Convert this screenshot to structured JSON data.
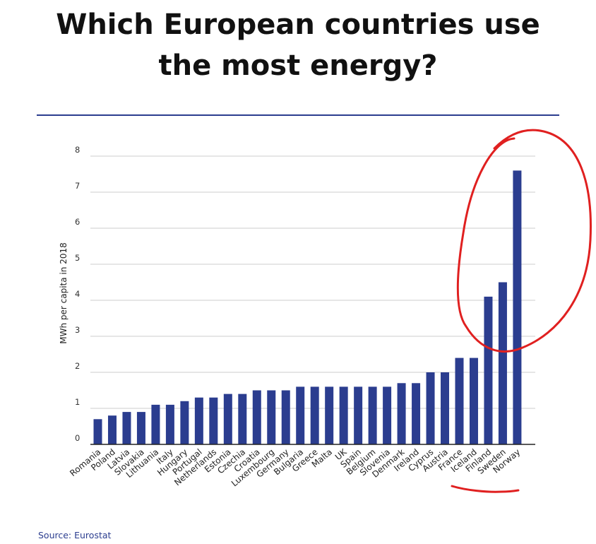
{
  "chart_data": {
    "type": "bar",
    "title": "Which European countries use the most energy?",
    "title_lines": [
      "Which European countries use",
      "the most energy?"
    ],
    "xlabel": "",
    "ylabel": "MWh per capita in 2018",
    "ylim": [
      0,
      8
    ],
    "yticks": [
      "0",
      "1",
      "2",
      "3",
      "4",
      "5",
      "6",
      "7",
      "8"
    ],
    "grid": true,
    "categories": [
      "Romania",
      "Poland",
      "Latvia",
      "Slovakia",
      "Lithuania",
      "Italy",
      "Hungary",
      "Portugal",
      "Netherlands",
      "Estonia",
      "Czechia",
      "Croatia",
      "Luxembourg",
      "Germany",
      "Bulgaria",
      "Greece",
      "Malta",
      "UK",
      "Spain",
      "Belgium",
      "Slovenia",
      "Denmark",
      "Ireland",
      "Cyprus",
      "Austria",
      "France",
      "Iceland",
      "Finland",
      "Sweden",
      "Norway"
    ],
    "values": [
      0.7,
      0.8,
      0.9,
      0.9,
      1.1,
      1.1,
      1.2,
      1.3,
      1.3,
      1.4,
      1.4,
      1.5,
      1.5,
      1.5,
      1.6,
      1.6,
      1.6,
      1.6,
      1.6,
      1.6,
      1.6,
      1.7,
      1.7,
      2.0,
      2.0,
      2.4,
      2.4,
      4.1,
      4.5,
      7.6
    ],
    "annotations": [
      "red hand-drawn circle around the Finland, Sweden and Norway bars",
      "red hand-drawn underline beneath the Iceland, Finland, Sweden and Norway labels"
    ],
    "source": "Source: Eurostat"
  },
  "colors": {
    "bar": "#2b3d8f",
    "rule": "#2b3d8f",
    "grid": "#cccccc",
    "annotation": "#e02020"
  }
}
